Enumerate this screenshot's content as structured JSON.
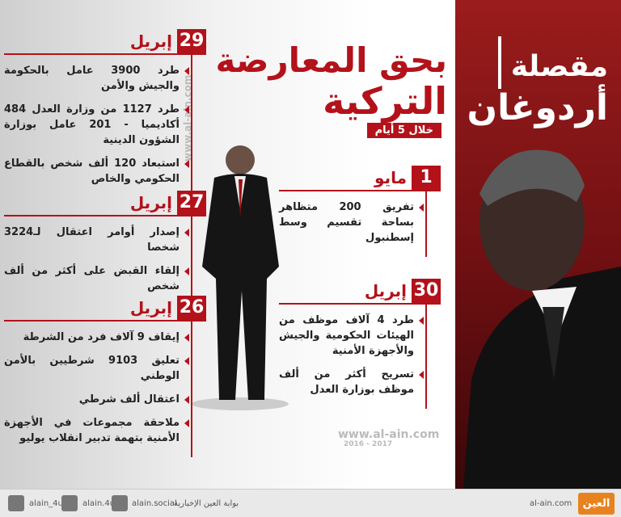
{
  "header": {
    "brand": [
      "مقصلة",
      "أردوغان"
    ],
    "title": [
      "بحق المعارضة",
      "التركية"
    ],
    "subtitle": "خلال 5 أيام"
  },
  "sections": [
    {
      "day": "29",
      "month": "إبريل",
      "items": [
        "طرد 3900 عامل بالحكومة والجيش والأمن",
        "طرد 1127 من وزارة العدل 484 أكاديميا - 201 عامل بوزارة الشؤون الدينية",
        "استبعاد 120 ألف شخص بالقطاع الحكومي والخاص"
      ]
    },
    {
      "day": "27",
      "month": "إبريل",
      "items": [
        "إصدار أوامر اعتقال لـ3224 شخصا",
        "إلقاء القبض على أكثر من ألف شخص"
      ]
    },
    {
      "day": "26",
      "month": "إبريل",
      "items": [
        "إيقاف 9 آلاف فرد من الشرطة",
        "تعليق 9103 شرطيين بالأمن الوطني",
        "اعتقال ألف شرطي",
        "ملاحقة مجموعات في الأجهزة الأمنية بتهمة تدبير انقلاب يوليو"
      ]
    },
    {
      "day": "1",
      "month": "مايو",
      "items": [
        "تفريق 200 متظاهر بساحة تقسيم وسط إسطنبول"
      ]
    },
    {
      "day": "30",
      "month": "إبريل",
      "items": [
        "طرد 4 آلاف موظف من الهيئات الحكومية والجيش والأجهزة الأمنية",
        "تسريح أكثر من ألف موظف بوزارة العدل"
      ]
    }
  ],
  "watermark": {
    "site": "www.al-ain.com",
    "years": "2016 - 2017"
  },
  "footer": {
    "twitter": "alain_4u",
    "instagram": "alain.4u",
    "facebook": "alain.social",
    "portal": "بوابة العين الإخبارية",
    "site": "al-ain.com",
    "logo": "العين"
  }
}
